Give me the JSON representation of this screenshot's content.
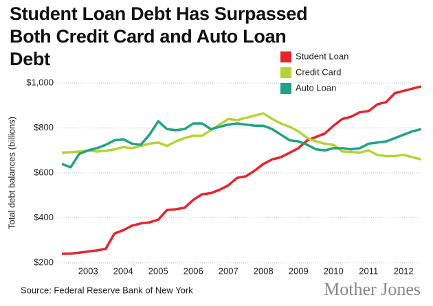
{
  "chart_data": {
    "type": "line",
    "title": "Student Loan Debt Has Surpassed Both Credit Card and Auto Loan Debt",
    "y_label": "Total debt balances (billions)",
    "source": "Source: Federal Reserve Bank of New York",
    "credit": "Mother Jones",
    "categories": [
      null,
      null,
      null,
      "2003",
      null,
      null,
      null,
      "2004",
      null,
      null,
      null,
      "2005",
      null,
      null,
      null,
      "2006",
      null,
      null,
      null,
      "2007",
      null,
      null,
      null,
      "2008",
      null,
      null,
      null,
      "2009",
      null,
      null,
      null,
      "2010",
      null,
      null,
      null,
      "2011",
      null,
      null,
      null,
      "2012",
      null,
      null
    ],
    "series": [
      {
        "name": "Student Loan",
        "color": "#e8232b",
        "values": [
          240,
          241,
          245,
          250,
          255,
          262,
          330,
          345,
          365,
          375,
          380,
          392,
          435,
          438,
          445,
          480,
          505,
          510,
          525,
          545,
          578,
          585,
          610,
          640,
          660,
          670,
          690,
          710,
          745,
          760,
          775,
          810,
          840,
          850,
          870,
          875,
          905,
          915,
          955,
          965,
          975,
          985
        ]
      },
      {
        "name": "Credit Card",
        "color": "#b5d334",
        "values": [
          690,
          692,
          695,
          700,
          695,
          698,
          705,
          715,
          710,
          720,
          730,
          735,
          720,
          740,
          755,
          765,
          765,
          790,
          815,
          840,
          835,
          845,
          855,
          865,
          840,
          820,
          805,
          785,
          755,
          740,
          730,
          725,
          695,
          693,
          690,
          700,
          680,
          675,
          675,
          680,
          670,
          660
        ]
      },
      {
        "name": "Auto Loan",
        "color": "#1fa384",
        "values": [
          640,
          625,
          685,
          700,
          710,
          725,
          745,
          750,
          730,
          725,
          770,
          830,
          795,
          790,
          795,
          820,
          820,
          795,
          805,
          815,
          820,
          815,
          810,
          810,
          795,
          770,
          745,
          740,
          725,
          705,
          700,
          710,
          710,
          705,
          710,
          730,
          735,
          740,
          755,
          770,
          785,
          795
        ]
      }
    ],
    "ylim": [
      200,
      1000
    ],
    "yticks": [
      {
        "value": 200,
        "label": "$200"
      },
      {
        "value": 400,
        "label": "$400"
      },
      {
        "value": 600,
        "label": "$600"
      },
      {
        "value": 800,
        "label": "$800"
      },
      {
        "value": 1000,
        "label": "$1,000"
      }
    ],
    "grid": true
  }
}
